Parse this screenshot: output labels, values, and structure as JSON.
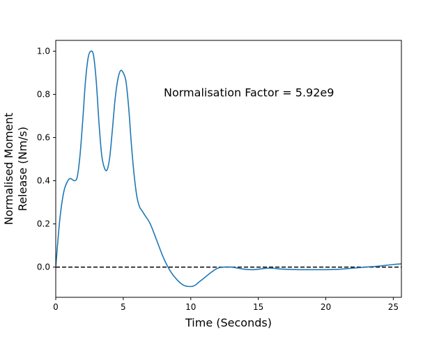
{
  "chart_data": {
    "type": "line",
    "title": "",
    "xlabel": "Time (Seconds)",
    "ylabel_lines": [
      "Normalised Moment",
      "Release (Nm/s)"
    ],
    "xlim": [
      0,
      25.6
    ],
    "ylim": [
      -0.14,
      1.05
    ],
    "x_ticks": [
      0,
      5,
      10,
      15,
      20,
      25
    ],
    "y_ticks": [
      0.0,
      0.2,
      0.4,
      0.6,
      0.8,
      1.0
    ],
    "y_tick_labels": [
      "0.0",
      "0.2",
      "0.4",
      "0.6",
      "0.8",
      "1.0"
    ],
    "grid": false,
    "annotation": {
      "text": "Normalisation Factor = 5.92e9",
      "x": 8.0,
      "y": 0.81
    },
    "reference_line": {
      "y": 0.0,
      "style": "dashed",
      "color": "#000000"
    },
    "series": [
      {
        "color": "#1f77b4",
        "x": [
          0,
          0.3,
          0.6,
          0.9,
          1.1,
          1.4,
          1.6,
          1.8,
          2.0,
          2.2,
          2.4,
          2.6,
          2.8,
          3.0,
          3.2,
          3.4,
          3.6,
          3.8,
          4.0,
          4.2,
          4.4,
          4.6,
          4.8,
          5.0,
          5.2,
          5.4,
          5.6,
          5.8,
          6.0,
          6.2,
          6.4,
          6.6,
          7.0,
          7.5,
          8.0,
          8.5,
          9.0,
          9.5,
          10.0,
          10.3,
          10.6,
          11.0,
          11.5,
          12.0,
          12.5,
          13.0,
          13.5,
          14.0,
          14.5,
          15.0,
          15.5,
          16.0,
          16.5,
          17.0,
          18.0,
          19.0,
          20.0,
          21.0,
          22.0,
          23.0,
          24.0,
          25.0,
          25.6
        ],
        "values": [
          0.0,
          0.22,
          0.35,
          0.4,
          0.41,
          0.4,
          0.42,
          0.52,
          0.68,
          0.86,
          0.97,
          1.0,
          0.98,
          0.86,
          0.67,
          0.52,
          0.46,
          0.45,
          0.51,
          0.64,
          0.78,
          0.87,
          0.91,
          0.9,
          0.86,
          0.74,
          0.57,
          0.43,
          0.33,
          0.28,
          0.26,
          0.24,
          0.2,
          0.12,
          0.04,
          -0.02,
          -0.06,
          -0.085,
          -0.09,
          -0.085,
          -0.07,
          -0.05,
          -0.025,
          -0.005,
          0.0,
          0.0,
          -0.005,
          -0.01,
          -0.012,
          -0.01,
          -0.006,
          -0.005,
          -0.008,
          -0.01,
          -0.012,
          -0.012,
          -0.012,
          -0.01,
          -0.005,
          0.0,
          0.005,
          0.012,
          0.015
        ]
      }
    ]
  }
}
